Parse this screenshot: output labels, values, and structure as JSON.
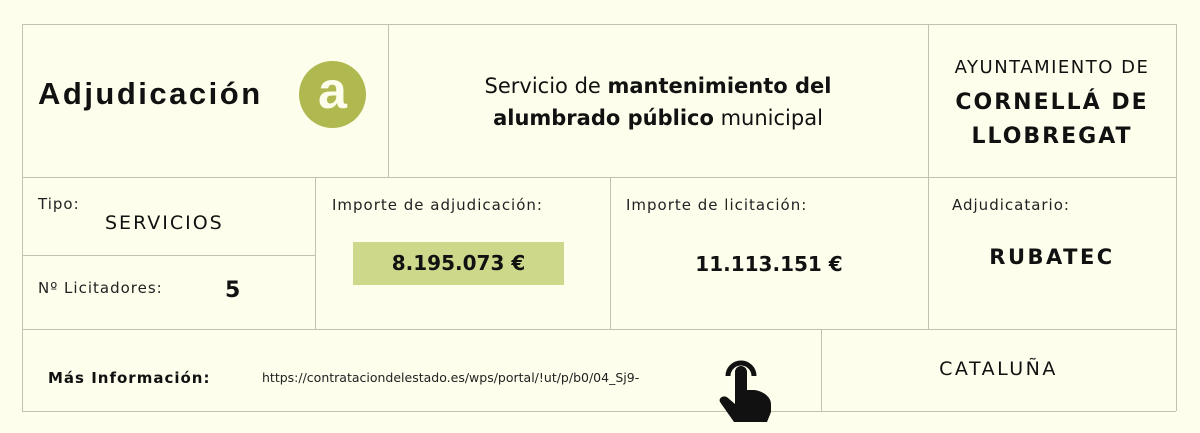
{
  "header": {
    "title": "Adjudicación",
    "badge_letter": "a",
    "service_part1": "Servicio de ",
    "service_bold1": "mantenimiento del",
    "service_bold2": "alumbrado público",
    "service_part2": " municipal",
    "org_line1": "AYUNTAMIENTO DE",
    "org_line2": "CORNELLÁ DE",
    "org_line3": "LLOBREGAT"
  },
  "details": {
    "tipo_label": "Tipo:",
    "tipo_value": "SERVICIOS",
    "licitadores_label": "Nº Licitadores:",
    "licitadores_value": "5",
    "adjudicacion_label": "Importe de adjudicación:",
    "adjudicacion_value": "8.195.073 €",
    "licitacion_label": "Importe de licitación:",
    "licitacion_value": "11.113.151 €",
    "adjudicatario_label": "Adjudicatario:",
    "adjudicatario_value": "RUBATEC"
  },
  "footer": {
    "info_label": "Más Información:",
    "url": "https://contrataciondelestado.es/wps/portal/!ut/p/b0/04_Sj9-",
    "region": "CATALUÑA",
    "pointer_icon": "hand-pointer-icon"
  },
  "colors": {
    "accent": "#b0b850",
    "highlight": "#cdd88a",
    "background": "#fdfeec"
  }
}
